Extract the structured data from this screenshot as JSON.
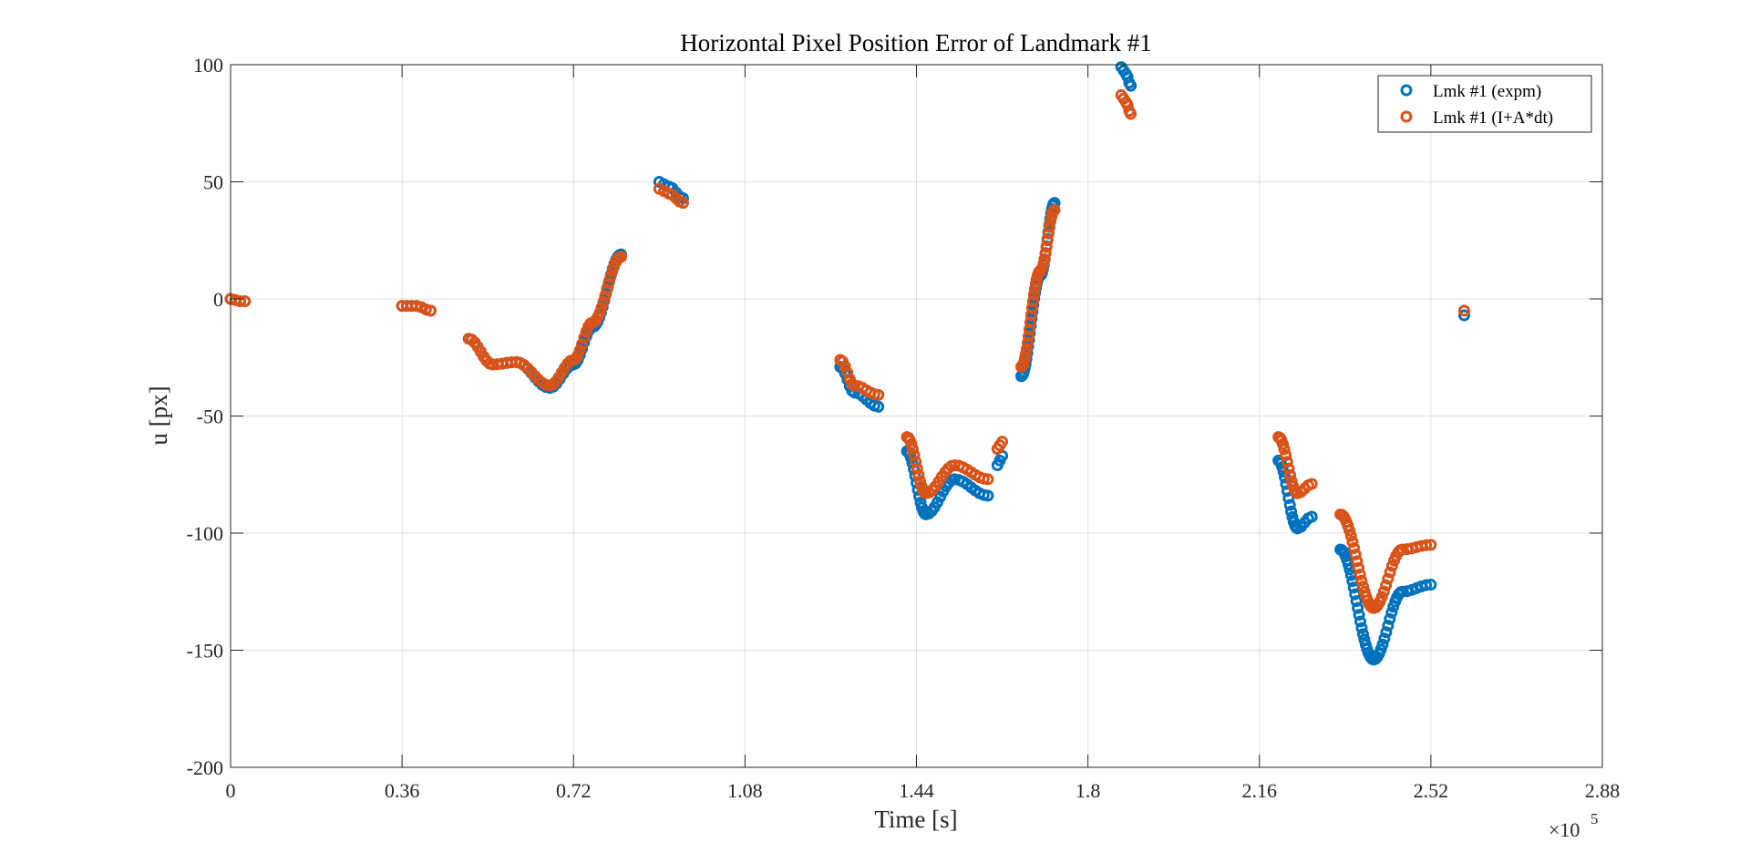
{
  "chart_data": {
    "type": "scatter",
    "title": "Horizontal Pixel Position Error of Landmark #1",
    "xlabel": "Time [s]",
    "ylabel": "u [px]",
    "x_multiplier_label": {
      "base": "×10",
      "exponent": "5"
    },
    "xlim": [
      0,
      2.88
    ],
    "ylim": [
      -200,
      100
    ],
    "xticks": [
      0,
      0.36,
      0.72,
      1.08,
      1.44,
      1.8,
      2.16,
      2.52,
      2.88
    ],
    "xtick_labels": [
      "0",
      "0.36",
      "0.72",
      "1.08",
      "1.44",
      "1.8",
      "2.16",
      "2.52",
      "2.88"
    ],
    "yticks": [
      100,
      50,
      0,
      -50,
      -100,
      -150,
      -200
    ],
    "ytick_labels": [
      "100",
      "50",
      "0",
      "-50",
      "-100",
      "-150",
      "-200"
    ],
    "grid": true,
    "legend_position": "top-right",
    "marker": "circle-open",
    "series": [
      {
        "name": "Lmk #1 (expm)",
        "color": "#0072BD",
        "segments": [
          [
            [
              0.0,
              0
            ],
            [
              0.02,
              -1
            ],
            [
              0.03,
              -1
            ]
          ],
          [
            [
              0.36,
              -3
            ],
            [
              0.39,
              -3
            ],
            [
              0.42,
              -5
            ]
          ],
          [
            [
              0.5,
              -17
            ],
            [
              0.55,
              -28
            ],
            [
              0.6,
              -27
            ],
            [
              0.67,
              -38
            ],
            [
              0.72,
              -28
            ],
            [
              0.76,
              -12
            ],
            [
              0.82,
              19
            ]
          ],
          [
            [
              0.9,
              50
            ],
            [
              0.92,
              48
            ],
            [
              0.95,
              43
            ]
          ],
          [
            [
              1.28,
              -29
            ],
            [
              1.31,
              -40
            ],
            [
              1.36,
              -46
            ]
          ],
          [
            [
              1.42,
              -65
            ],
            [
              1.46,
              -92
            ],
            [
              1.52,
              -77
            ],
            [
              1.59,
              -84
            ]
          ],
          [
            [
              1.61,
              -71
            ],
            [
              1.62,
              -67
            ]
          ],
          [
            [
              1.66,
              -33
            ],
            [
              1.7,
              10
            ],
            [
              1.73,
              41
            ]
          ],
          [
            [
              1.87,
              99
            ],
            [
              1.88,
              96
            ],
            [
              1.89,
              91
            ]
          ],
          [
            [
              2.2,
              -69
            ],
            [
              2.24,
              -98
            ],
            [
              2.27,
              -93
            ]
          ],
          [
            [
              2.33,
              -107
            ],
            [
              2.4,
              -154
            ],
            [
              2.46,
              -125
            ],
            [
              2.52,
              -122
            ]
          ],
          [
            [
              2.59,
              -7
            ]
          ]
        ]
      },
      {
        "name": "Lmk #1 (I+A*dt)",
        "color": "#D95319",
        "segments": [
          [
            [
              0.0,
              0
            ],
            [
              0.02,
              -1
            ],
            [
              0.03,
              -1
            ]
          ],
          [
            [
              0.36,
              -3
            ],
            [
              0.39,
              -3
            ],
            [
              0.42,
              -5
            ]
          ],
          [
            [
              0.5,
              -17
            ],
            [
              0.55,
              -28
            ],
            [
              0.6,
              -27
            ],
            [
              0.67,
              -37
            ],
            [
              0.72,
              -26
            ],
            [
              0.76,
              -10
            ],
            [
              0.82,
              18
            ]
          ],
          [
            [
              0.9,
              47
            ],
            [
              0.92,
              45
            ],
            [
              0.95,
              41
            ]
          ],
          [
            [
              1.28,
              -26
            ],
            [
              1.31,
              -37
            ],
            [
              1.36,
              -41
            ]
          ],
          [
            [
              1.42,
              -59
            ],
            [
              1.46,
              -83
            ],
            [
              1.52,
              -71
            ],
            [
              1.59,
              -77
            ]
          ],
          [
            [
              1.61,
              -64
            ],
            [
              1.62,
              -61
            ]
          ],
          [
            [
              1.66,
              -29
            ],
            [
              1.7,
              12
            ],
            [
              1.73,
              38
            ]
          ],
          [
            [
              1.87,
              87
            ],
            [
              1.88,
              84
            ],
            [
              1.89,
              79
            ]
          ],
          [
            [
              2.2,
              -59
            ],
            [
              2.24,
              -83
            ],
            [
              2.27,
              -79
            ]
          ],
          [
            [
              2.33,
              -92
            ],
            [
              2.4,
              -132
            ],
            [
              2.46,
              -107
            ],
            [
              2.52,
              -105
            ]
          ],
          [
            [
              2.59,
              -5
            ]
          ]
        ]
      }
    ]
  }
}
